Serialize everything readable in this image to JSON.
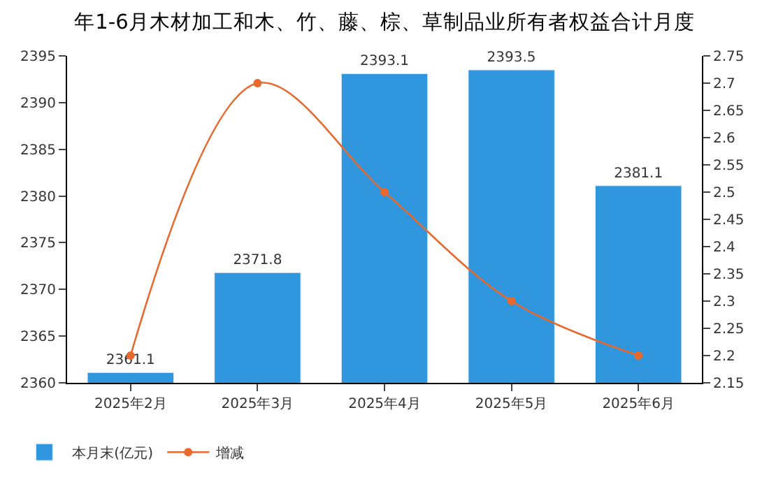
{
  "chart_data": {
    "type": "bar",
    "title": "年1-6月木材加工和木、竹、藤、棕、草制品业所有者权益合计月度",
    "categories": [
      "2025年2月",
      "2025年3月",
      "2025年4月",
      "2025年5月",
      "2025年6月"
    ],
    "series": [
      {
        "name": "本月末(亿元)",
        "color": "#3097df",
        "values": [
          2361.1,
          2371.8,
          2393.1,
          2393.5,
          2381.1
        ],
        "value_labels": [
          "2361.1",
          "2371.8",
          "2393.1",
          "2393.5",
          "2381.1"
        ]
      },
      {
        "name": "增减",
        "type": "line",
        "axis": "y2",
        "color": "#e8692e",
        "values": [
          2.2,
          2.7,
          2.5,
          2.3,
          2.2
        ]
      }
    ],
    "ylim": [
      2360,
      2395
    ],
    "yticks": [
      2360,
      2365,
      2370,
      2375,
      2380,
      2385,
      2390,
      2395
    ],
    "y2lim": [
      2.15,
      2.75
    ],
    "y2ticks": [
      2.15,
      2.2,
      2.25,
      2.3,
      2.35,
      2.4,
      2.45,
      2.5,
      2.55,
      2.6,
      2.65,
      2.7,
      2.75
    ],
    "grid": false,
    "legend": "bottom left",
    "marker": "circle",
    "line_style": "solid"
  }
}
